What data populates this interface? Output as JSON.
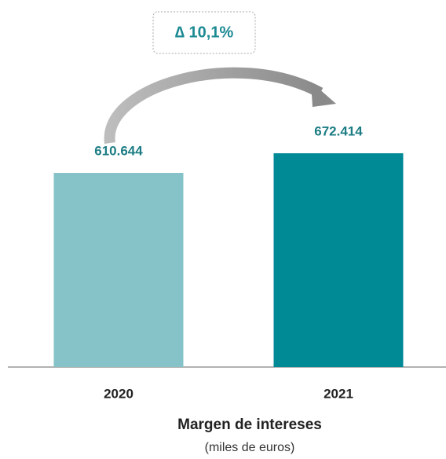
{
  "chart_data": {
    "type": "bar",
    "title": "Margen de intereses",
    "subtitle": "(miles de euros)",
    "annotation": "∆ 10,1%",
    "categories": [
      "2020",
      "2021"
    ],
    "values": [
      610644,
      672414
    ],
    "value_labels": [
      "610.644",
      "672.414"
    ],
    "colors": [
      "#85c3c9",
      "#008a96"
    ]
  }
}
